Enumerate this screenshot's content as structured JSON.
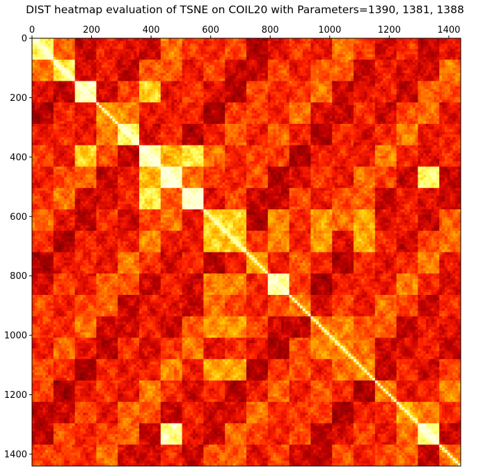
{
  "chart_data": {
    "type": "heatmap",
    "title": "DIST heatmap evaluation of TSNE on COIL20 with Parameters=1390, 1381, 1388",
    "xlabel": "",
    "ylabel": "",
    "x_axis_position": "top",
    "xlim": [
      0,
      1440
    ],
    "ylim": [
      1440,
      0
    ],
    "xticks": [
      0,
      200,
      400,
      600,
      800,
      1000,
      1200,
      1400
    ],
    "yticks": [
      0,
      200,
      400,
      600,
      800,
      1000,
      1200,
      1400
    ],
    "grid": false,
    "legend": "none",
    "colormap": [
      "#800000",
      "#c00000",
      "#ff2000",
      "#ff7000",
      "#ffc000",
      "#ffff60",
      "#ffffe0"
    ],
    "approx_class_block_boundaries": [
      0,
      72,
      144,
      216,
      288,
      360,
      432,
      504,
      576,
      648,
      720,
      792,
      864,
      936,
      1008,
      1080,
      1152,
      1224,
      1296,
      1368,
      1440
    ],
    "blocks": [
      {
        "row": [
          0,
          70
        ],
        "col": [
          0,
          70
        ],
        "level": 0.85
      },
      {
        "row": [
          70,
          140
        ],
        "col": [
          70,
          140
        ],
        "level": 0.8
      },
      {
        "row": [
          140,
          215
        ],
        "col": [
          140,
          215
        ],
        "level": 0.92
      },
      {
        "row": [
          215,
          290
        ],
        "col": [
          215,
          290
        ],
        "level": 0.55
      },
      {
        "row": [
          290,
          360
        ],
        "col": [
          290,
          360
        ],
        "level": 0.85
      },
      {
        "row": [
          360,
          430
        ],
        "col": [
          360,
          430
        ],
        "level": 0.96
      },
      {
        "row": [
          430,
          505
        ],
        "col": [
          430,
          505
        ],
        "level": 0.98
      },
      {
        "row": [
          505,
          575
        ],
        "col": [
          505,
          575
        ],
        "level": 0.97
      },
      {
        "row": [
          575,
          720
        ],
        "col": [
          575,
          720
        ],
        "level": 0.7
      },
      {
        "row": [
          720,
          795
        ],
        "col": [
          720,
          795
        ],
        "level": 0.6
      },
      {
        "row": [
          795,
          865
        ],
        "col": [
          795,
          865
        ],
        "level": 0.9
      },
      {
        "row": [
          865,
          935
        ],
        "col": [
          865,
          935
        ],
        "level": 0.5
      },
      {
        "row": [
          935,
          1010
        ],
        "col": [
          935,
          1010
        ],
        "level": 0.5
      },
      {
        "row": [
          1010,
          1080
        ],
        "col": [
          1010,
          1080
        ],
        "level": 0.55
      },
      {
        "row": [
          1080,
          1150
        ],
        "col": [
          1080,
          1150
        ],
        "level": 0.55
      },
      {
        "row": [
          1150,
          1220
        ],
        "col": [
          1150,
          1220
        ],
        "level": 0.5
      },
      {
        "row": [
          1220,
          1295
        ],
        "col": [
          1220,
          1295
        ],
        "level": 0.6
      },
      {
        "row": [
          1295,
          1365
        ],
        "col": [
          1295,
          1365
        ],
        "level": 0.9
      },
      {
        "row": [
          1365,
          1440
        ],
        "col": [
          1365,
          1440
        ],
        "level": 0.5
      },
      {
        "row": [
          140,
          215
        ],
        "col": [
          360,
          430
        ],
        "level": 0.72
      },
      {
        "row": [
          360,
          430
        ],
        "col": [
          140,
          215
        ],
        "level": 0.72
      },
      {
        "row": [
          430,
          505
        ],
        "col": [
          360,
          430
        ],
        "level": 0.65
      },
      {
        "row": [
          360,
          430
        ],
        "col": [
          430,
          505
        ],
        "level": 0.65
      },
      {
        "row": [
          505,
          575
        ],
        "col": [
          360,
          430
        ],
        "level": 0.8
      },
      {
        "row": [
          360,
          430
        ],
        "col": [
          505,
          575
        ],
        "level": 0.8
      },
      {
        "row": [
          1295,
          1365
        ],
        "col": [
          430,
          505
        ],
        "level": 0.9
      },
      {
        "row": [
          430,
          505
        ],
        "col": [
          1295,
          1365
        ],
        "level": 0.85
      },
      {
        "row": [
          575,
          720
        ],
        "col": [
          1080,
          1150
        ],
        "level": 0.62
      },
      {
        "row": [
          1080,
          1150
        ],
        "col": [
          575,
          720
        ],
        "level": 0.62
      },
      {
        "row": [
          575,
          720
        ],
        "col": [
          935,
          1010
        ],
        "level": 0.58
      },
      {
        "row": [
          935,
          1010
        ],
        "col": [
          575,
          720
        ],
        "level": 0.58
      },
      {
        "row": [
          575,
          720
        ],
        "col": [
          795,
          865
        ],
        "level": 0.55
      },
      {
        "row": [
          795,
          865
        ],
        "col": [
          575,
          720
        ],
        "level": 0.55
      },
      {
        "row": [
          1010,
          1080
        ],
        "col": [
          935,
          1010
        ],
        "level": 0.55
      },
      {
        "row": [
          935,
          1010
        ],
        "col": [
          1010,
          1080
        ],
        "level": 0.55
      }
    ]
  }
}
